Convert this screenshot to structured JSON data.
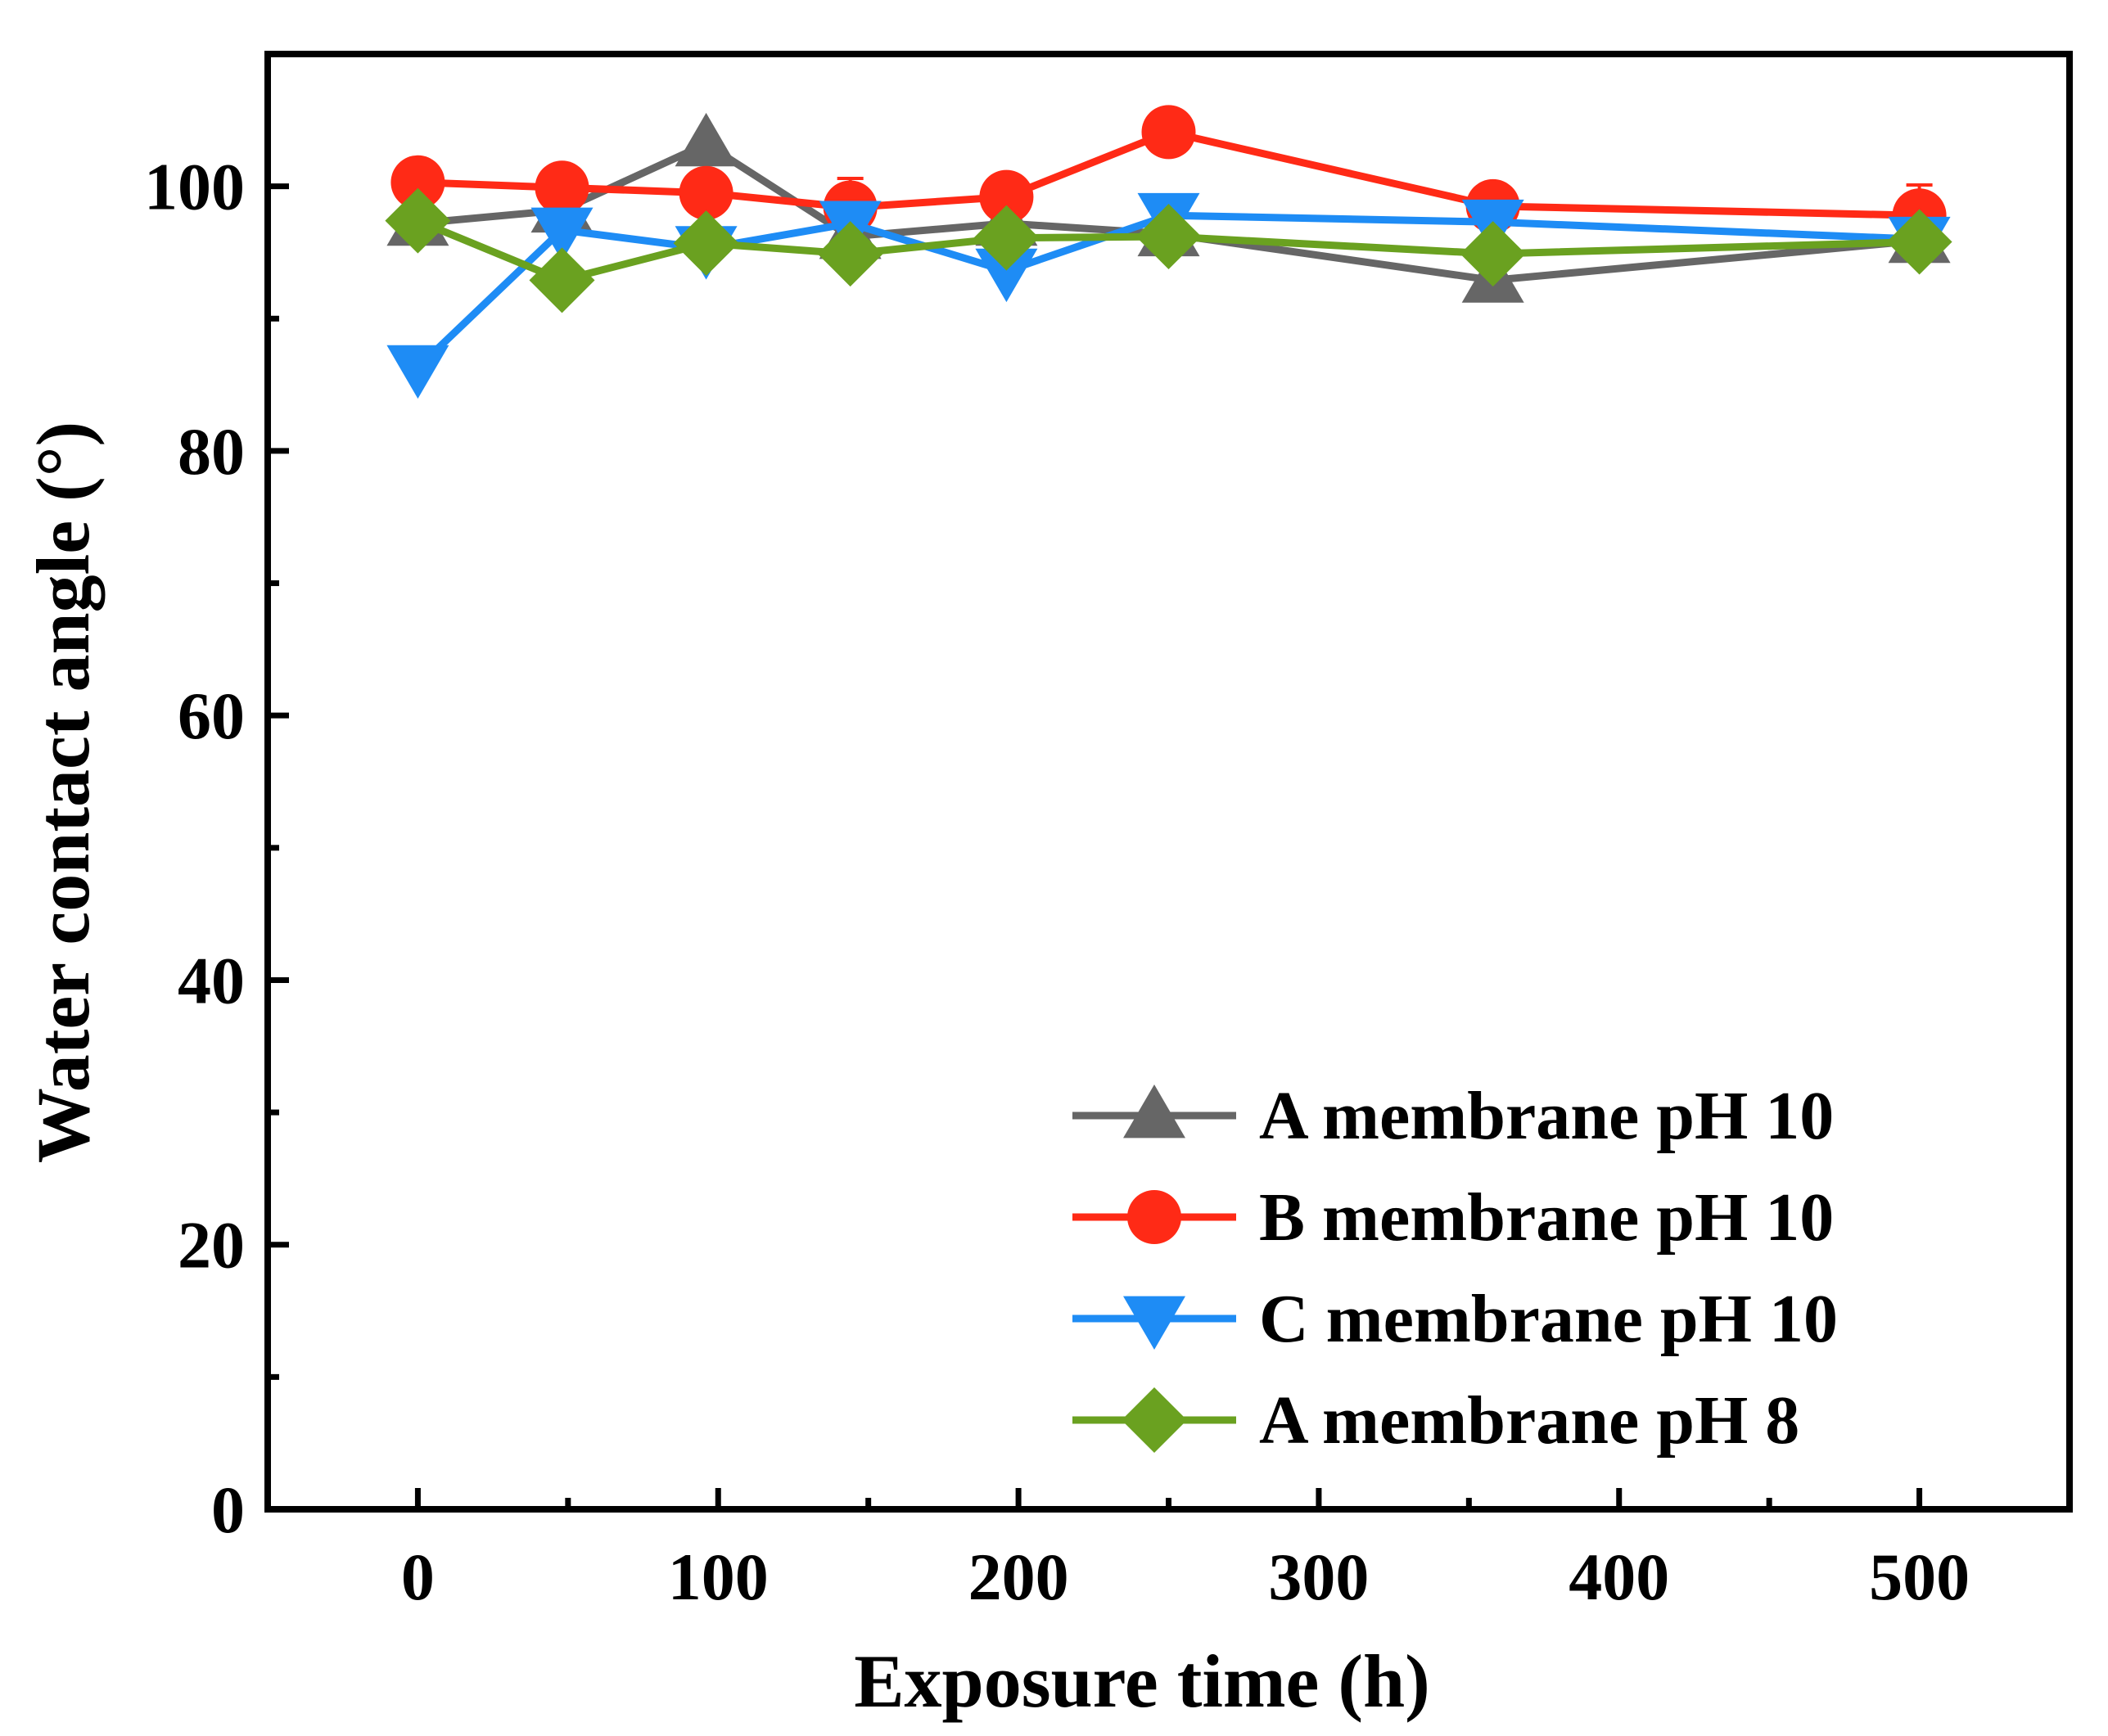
{
  "chart_data": {
    "type": "line",
    "title": "",
    "xlabel": "Exposure time (h)",
    "ylabel": "Water contact angle (°)",
    "xlim": [
      -50,
      550
    ],
    "ylim": [
      0,
      110
    ],
    "xticks": [
      0,
      100,
      200,
      300,
      400,
      500
    ],
    "yticks": [
      0,
      20,
      40,
      60,
      80,
      100
    ],
    "xtick_labels": [
      "0",
      "100",
      "200",
      "300",
      "400",
      "500"
    ],
    "ytick_labels": [
      "0",
      "20",
      "40",
      "60",
      "80",
      "100"
    ],
    "grid": false,
    "legend_position": "bottom-right",
    "x": [
      0,
      48,
      96,
      144,
      196,
      250,
      358,
      500
    ],
    "series": [
      {
        "name": "A membrane pH 10",
        "color": "#666666",
        "marker": "triangle-up",
        "values": [
          97.2,
          98.2,
          103.2,
          96.2,
          97.2,
          96.4,
          92.9,
          95.9
        ]
      },
      {
        "name": "B membrane pH 10",
        "color": "#ff2a16",
        "marker": "circle",
        "values": [
          100.3,
          99.9,
          99.5,
          98.4,
          99.2,
          104.1,
          98.5,
          97.8
        ],
        "error_bars": [
          0,
          0,
          0,
          2.2,
          0,
          0,
          0,
          2.3
        ]
      },
      {
        "name": "C membrane pH 10",
        "color": "#1e8cf5",
        "marker": "triangle-down",
        "values": [
          86.3,
          96.7,
          95.3,
          97.2,
          93.6,
          97.8,
          97.3,
          96.0
        ]
      },
      {
        "name": "A membrane pH 8",
        "color": "#6aa120",
        "marker": "diamond",
        "values": [
          97.4,
          92.9,
          95.7,
          94.9,
          96.1,
          96.2,
          94.9,
          95.8
        ]
      }
    ]
  }
}
